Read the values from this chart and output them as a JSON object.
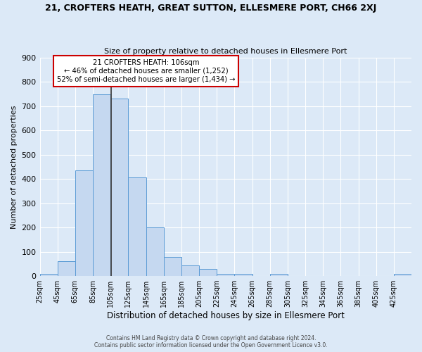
{
  "title": "21, CROFTERS HEATH, GREAT SUTTON, ELLESMERE PORT, CH66 2XJ",
  "subtitle": "Size of property relative to detached houses in Ellesmere Port",
  "xlabel": "Distribution of detached houses by size in Ellesmere Port",
  "ylabel": "Number of detached properties",
  "bar_color": "#c5d8f0",
  "bar_edge_color": "#5b9bd5",
  "background_color": "#dce9f7",
  "grid_color": "#ffffff",
  "bin_labels": [
    "25sqm",
    "45sqm",
    "65sqm",
    "85sqm",
    "105sqm",
    "125sqm",
    "145sqm",
    "165sqm",
    "185sqm",
    "205sqm",
    "225sqm",
    "245sqm",
    "265sqm",
    "285sqm",
    "305sqm",
    "325sqm",
    "345sqm",
    "365sqm",
    "385sqm",
    "405sqm",
    "425sqm"
  ],
  "bar_heights": [
    10,
    60,
    435,
    748,
    730,
    405,
    200,
    78,
    45,
    30,
    10,
    10,
    0,
    8,
    0,
    0,
    0,
    0,
    0,
    0,
    8
  ],
  "ylim": [
    0,
    900
  ],
  "yticks": [
    0,
    100,
    200,
    300,
    400,
    500,
    600,
    700,
    800,
    900
  ],
  "property_label": "21 CROFTERS HEATH: 106sqm",
  "annotation_line1": "← 46% of detached houses are smaller (1,252)",
  "annotation_line2": "52% of semi-detached houses are larger (1,434) →",
  "annotation_box_color": "#ffffff",
  "annotation_box_edge": "#cc0000",
  "vline_color": "#333333",
  "vline_x": 106,
  "footer1": "Contains HM Land Registry data © Crown copyright and database right 2024.",
  "footer2": "Contains public sector information licensed under the Open Government Licence v3.0."
}
